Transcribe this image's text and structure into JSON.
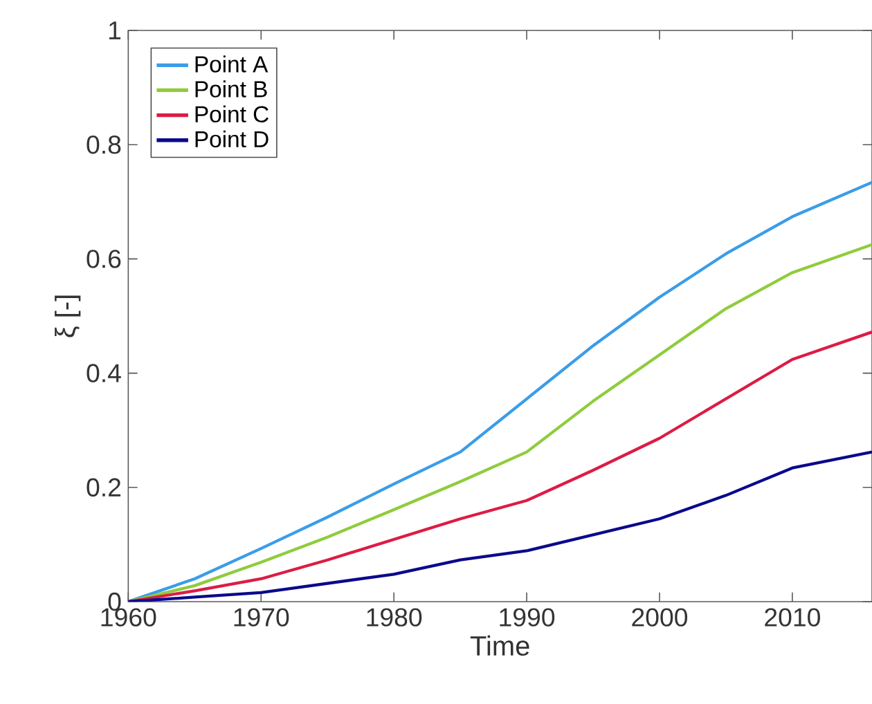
{
  "chart_data": {
    "type": "line",
    "xlabel": "Time",
    "ylabel": "ξ [-]",
    "x": [
      1960,
      1965,
      1970,
      1975,
      1980,
      1985,
      1990,
      1995,
      2000,
      2005,
      2010,
      2016
    ],
    "series": [
      {
        "name": "Point A",
        "color": "#3a9de8",
        "values": [
          0,
          0.04,
          0.093,
          0.148,
          0.206,
          0.262,
          0.355,
          0.448,
          0.533,
          0.609,
          0.674,
          0.734
        ]
      },
      {
        "name": "Point B",
        "color": "#8fcc3c",
        "values": [
          0,
          0.028,
          0.069,
          0.113,
          0.161,
          0.21,
          0.262,
          0.351,
          0.432,
          0.513,
          0.576,
          0.625
        ]
      },
      {
        "name": "Point C",
        "color": "#dc1c45",
        "values": [
          0,
          0.019,
          0.04,
          0.073,
          0.109,
          0.145,
          0.177,
          0.23,
          0.286,
          0.355,
          0.424,
          0.472
        ]
      },
      {
        "name": "Point D",
        "color": "#0a0a8c",
        "values": [
          0,
          0.008,
          0.016,
          0.032,
          0.048,
          0.073,
          0.089,
          0.117,
          0.145,
          0.186,
          0.234,
          0.262
        ]
      }
    ],
    "xlim": [
      1960,
      2016
    ],
    "ylim": [
      0,
      1
    ],
    "xticks": [
      1960,
      1970,
      1980,
      1990,
      2000,
      2010
    ],
    "yticks": [
      0,
      0.2,
      0.4,
      0.6,
      0.8,
      1
    ],
    "grid": false,
    "legend": "top left",
    "marker": "none",
    "line_style": "solid"
  }
}
